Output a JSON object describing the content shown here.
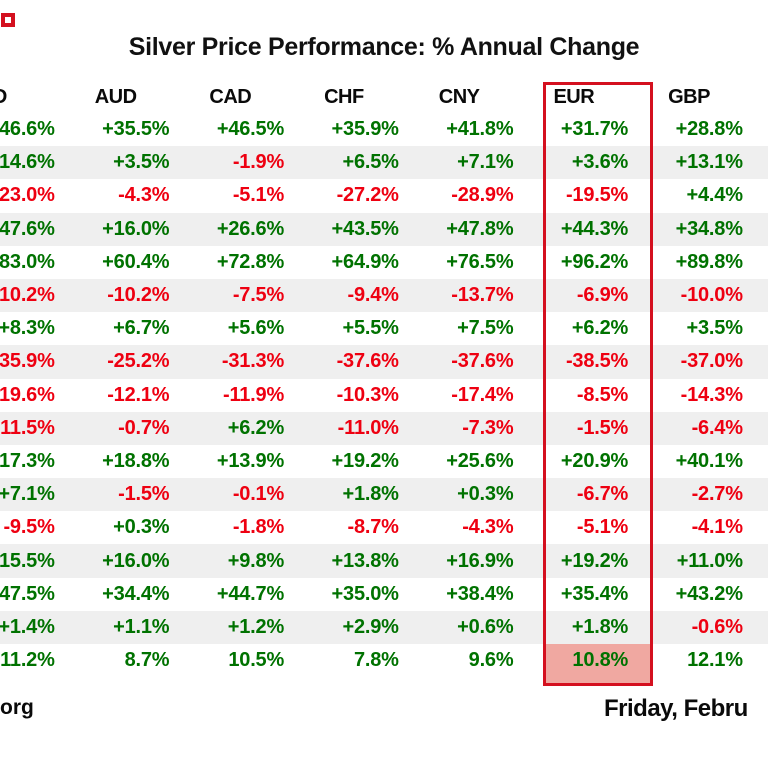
{
  "title": "Silver Price Performance: % Annual Change",
  "footer": {
    "site_text": "org",
    "date_text": "Friday, Febru"
  },
  "colors": {
    "positive_text": "#007200",
    "negative_text": "#ee0011",
    "zebra_row_bg": "#efefef",
    "highlight_box_border": "#d4101f",
    "highlight_cell_bg": "#f0a8a1",
    "header_text": "#0a0a0a"
  },
  "chart_data": {
    "type": "table",
    "title": "Silver Price Performance: % Annual Change",
    "columns": [
      "SD",
      "AUD",
      "CAD",
      "CHF",
      "CNY",
      "EUR",
      "GBP"
    ],
    "highlighted_column": "EUR",
    "highlighted_cell": {
      "column": "EUR",
      "row_index": 16,
      "value": "10.8%"
    },
    "rows": [
      [
        [
          "46.6%",
          "p"
        ],
        [
          "+35.5%",
          "p"
        ],
        [
          "+46.5%",
          "p"
        ],
        [
          "+35.9%",
          "p"
        ],
        [
          "+41.8%",
          "p"
        ],
        [
          "+31.7%",
          "p"
        ],
        [
          "+28.8%",
          "p"
        ]
      ],
      [
        [
          "14.6%",
          "p"
        ],
        [
          "+3.5%",
          "p"
        ],
        [
          "-1.9%",
          "n"
        ],
        [
          "+6.5%",
          "p"
        ],
        [
          "+7.1%",
          "p"
        ],
        [
          "+3.6%",
          "p"
        ],
        [
          "+13.1%",
          "p"
        ]
      ],
      [
        [
          "23.0%",
          "n"
        ],
        [
          "-4.3%",
          "n"
        ],
        [
          "-5.1%",
          "n"
        ],
        [
          "-27.2%",
          "n"
        ],
        [
          "-28.9%",
          "n"
        ],
        [
          "-19.5%",
          "n"
        ],
        [
          "+4.4%",
          "p"
        ]
      ],
      [
        [
          "47.6%",
          "p"
        ],
        [
          "+16.0%",
          "p"
        ],
        [
          "+26.6%",
          "p"
        ],
        [
          "+43.5%",
          "p"
        ],
        [
          "+47.8%",
          "p"
        ],
        [
          "+44.3%",
          "p"
        ],
        [
          "+34.8%",
          "p"
        ]
      ],
      [
        [
          "83.0%",
          "p"
        ],
        [
          "+60.4%",
          "p"
        ],
        [
          "+72.8%",
          "p"
        ],
        [
          "+64.9%",
          "p"
        ],
        [
          "+76.5%",
          "p"
        ],
        [
          "+96.2%",
          "p"
        ],
        [
          "+89.8%",
          "p"
        ]
      ],
      [
        [
          "10.2%",
          "n"
        ],
        [
          "-10.2%",
          "n"
        ],
        [
          "-7.5%",
          "n"
        ],
        [
          "-9.4%",
          "n"
        ],
        [
          "-13.7%",
          "n"
        ],
        [
          "-6.9%",
          "n"
        ],
        [
          "-10.0%",
          "n"
        ]
      ],
      [
        [
          "+8.3%",
          "p"
        ],
        [
          "+6.7%",
          "p"
        ],
        [
          "+5.6%",
          "p"
        ],
        [
          "+5.5%",
          "p"
        ],
        [
          "+7.5%",
          "p"
        ],
        [
          "+6.2%",
          "p"
        ],
        [
          "+3.5%",
          "p"
        ]
      ],
      [
        [
          "35.9%",
          "n"
        ],
        [
          "-25.2%",
          "n"
        ],
        [
          "-31.3%",
          "n"
        ],
        [
          "-37.6%",
          "n"
        ],
        [
          "-37.6%",
          "n"
        ],
        [
          "-38.5%",
          "n"
        ],
        [
          "-37.0%",
          "n"
        ]
      ],
      [
        [
          "19.6%",
          "n"
        ],
        [
          "-12.1%",
          "n"
        ],
        [
          "-11.9%",
          "n"
        ],
        [
          "-10.3%",
          "n"
        ],
        [
          "-17.4%",
          "n"
        ],
        [
          "-8.5%",
          "n"
        ],
        [
          "-14.3%",
          "n"
        ]
      ],
      [
        [
          "11.5%",
          "n"
        ],
        [
          "-0.7%",
          "n"
        ],
        [
          "+6.2%",
          "p"
        ],
        [
          "-11.0%",
          "n"
        ],
        [
          "-7.3%",
          "n"
        ],
        [
          "-1.5%",
          "n"
        ],
        [
          "-6.4%",
          "n"
        ]
      ],
      [
        [
          "17.3%",
          "p"
        ],
        [
          "+18.8%",
          "p"
        ],
        [
          "+13.9%",
          "p"
        ],
        [
          "+19.2%",
          "p"
        ],
        [
          "+25.6%",
          "p"
        ],
        [
          "+20.9%",
          "p"
        ],
        [
          "+40.1%",
          "p"
        ]
      ],
      [
        [
          "+7.1%",
          "p"
        ],
        [
          "-1.5%",
          "n"
        ],
        [
          "-0.1%",
          "n"
        ],
        [
          "+1.8%",
          "p"
        ],
        [
          "+0.3%",
          "p"
        ],
        [
          "-6.7%",
          "n"
        ],
        [
          "-2.7%",
          "n"
        ]
      ],
      [
        [
          "-9.5%",
          "n"
        ],
        [
          "+0.3%",
          "p"
        ],
        [
          "-1.8%",
          "n"
        ],
        [
          "-8.7%",
          "n"
        ],
        [
          "-4.3%",
          "n"
        ],
        [
          "-5.1%",
          "n"
        ],
        [
          "-4.1%",
          "n"
        ]
      ],
      [
        [
          "15.5%",
          "p"
        ],
        [
          "+16.0%",
          "p"
        ],
        [
          "+9.8%",
          "p"
        ],
        [
          "+13.8%",
          "p"
        ],
        [
          "+16.9%",
          "p"
        ],
        [
          "+19.2%",
          "p"
        ],
        [
          "+11.0%",
          "p"
        ]
      ],
      [
        [
          "47.5%",
          "p"
        ],
        [
          "+34.4%",
          "p"
        ],
        [
          "+44.7%",
          "p"
        ],
        [
          "+35.0%",
          "p"
        ],
        [
          "+38.4%",
          "p"
        ],
        [
          "+35.4%",
          "p"
        ],
        [
          "+43.2%",
          "p"
        ]
      ],
      [
        [
          "+1.4%",
          "p"
        ],
        [
          "+1.1%",
          "p"
        ],
        [
          "+1.2%",
          "p"
        ],
        [
          "+2.9%",
          "p"
        ],
        [
          "+0.6%",
          "p"
        ],
        [
          "+1.8%",
          "p"
        ],
        [
          "-0.6%",
          "n"
        ]
      ],
      [
        [
          "11.2%",
          "p"
        ],
        [
          "8.7%",
          "p"
        ],
        [
          "10.5%",
          "p"
        ],
        [
          "7.8%",
          "p"
        ],
        [
          "9.6%",
          "p"
        ],
        [
          "10.8%",
          "p"
        ],
        [
          "12.1%",
          "p"
        ]
      ]
    ]
  }
}
